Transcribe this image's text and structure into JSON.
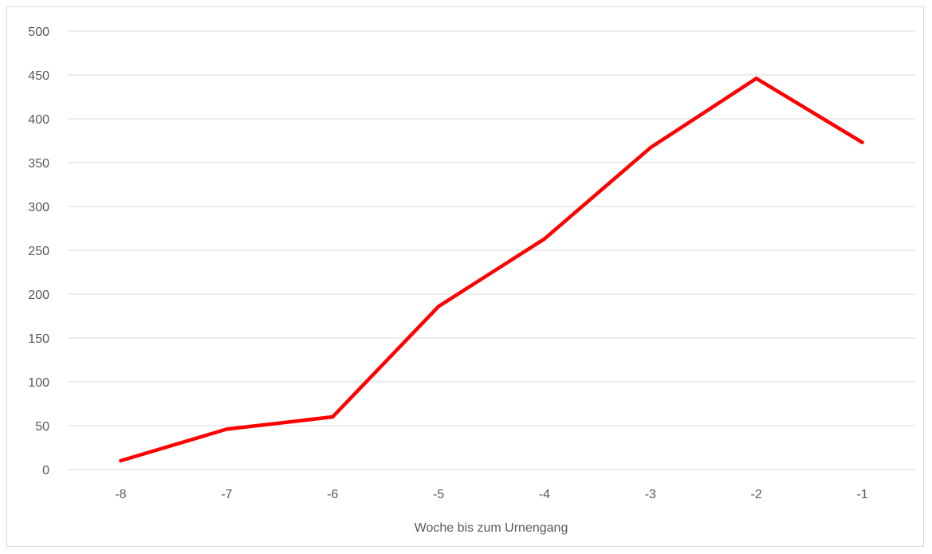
{
  "chart_data": {
    "type": "line",
    "title": "",
    "xlabel": "Woche bis zum Urnengang",
    "ylabel": "",
    "categories": [
      "-8",
      "-7",
      "-6",
      "-5",
      "-4",
      "-3",
      "-2",
      "-1"
    ],
    "series": [
      {
        "values": [
          10,
          46,
          60,
          186,
          263,
          367,
          446,
          373
        ],
        "color": "#ff0000"
      }
    ],
    "ylim": [
      0,
      500
    ],
    "yticks": [
      0,
      50,
      100,
      150,
      200,
      250,
      300,
      350,
      400,
      450,
      500
    ],
    "grid": "horizontal",
    "legend": "none",
    "gridline_color": "#d9d9d9",
    "axis_line_color": "#d9d9d9"
  }
}
